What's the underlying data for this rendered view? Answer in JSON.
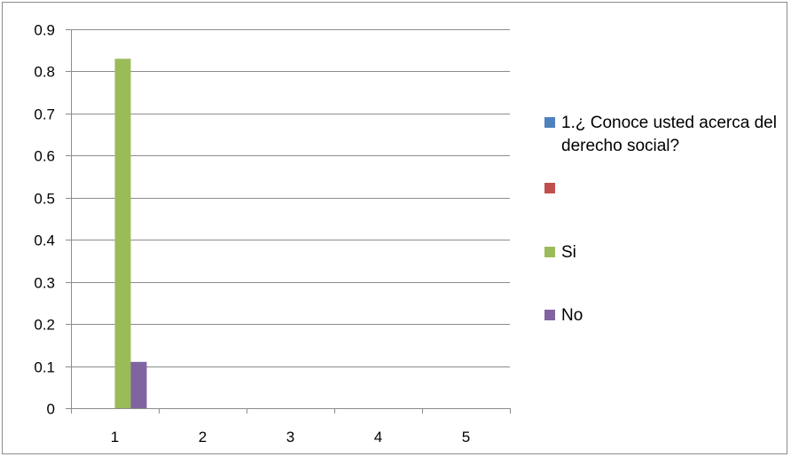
{
  "chart_data": {
    "type": "bar",
    "title": "",
    "xlabel": "",
    "ylabel": "",
    "categories": [
      "1",
      "2",
      "3",
      "4",
      "5"
    ],
    "ylim": [
      0,
      0.9
    ],
    "yticks": [
      "0",
      "0.1",
      "0.2",
      "0.3",
      "0.4",
      "0.5",
      "0.6",
      "0.7",
      "0.8",
      "0.9"
    ],
    "grid": true,
    "legend_position": "right",
    "series": [
      {
        "name": "1.¿ Conoce usted acerca del derecho social?",
        "color": "#4F81BD",
        "values": [
          0,
          0,
          0,
          0,
          0
        ]
      },
      {
        "name": "",
        "color": "#C0504D",
        "values": [
          0,
          0,
          0,
          0,
          0
        ]
      },
      {
        "name": "Si",
        "color": "#9BBB59",
        "values": [
          0.83,
          0,
          0,
          0,
          0
        ]
      },
      {
        "name": "No",
        "color": "#8064A2",
        "values": [
          0.11,
          0,
          0,
          0,
          0
        ]
      }
    ]
  }
}
